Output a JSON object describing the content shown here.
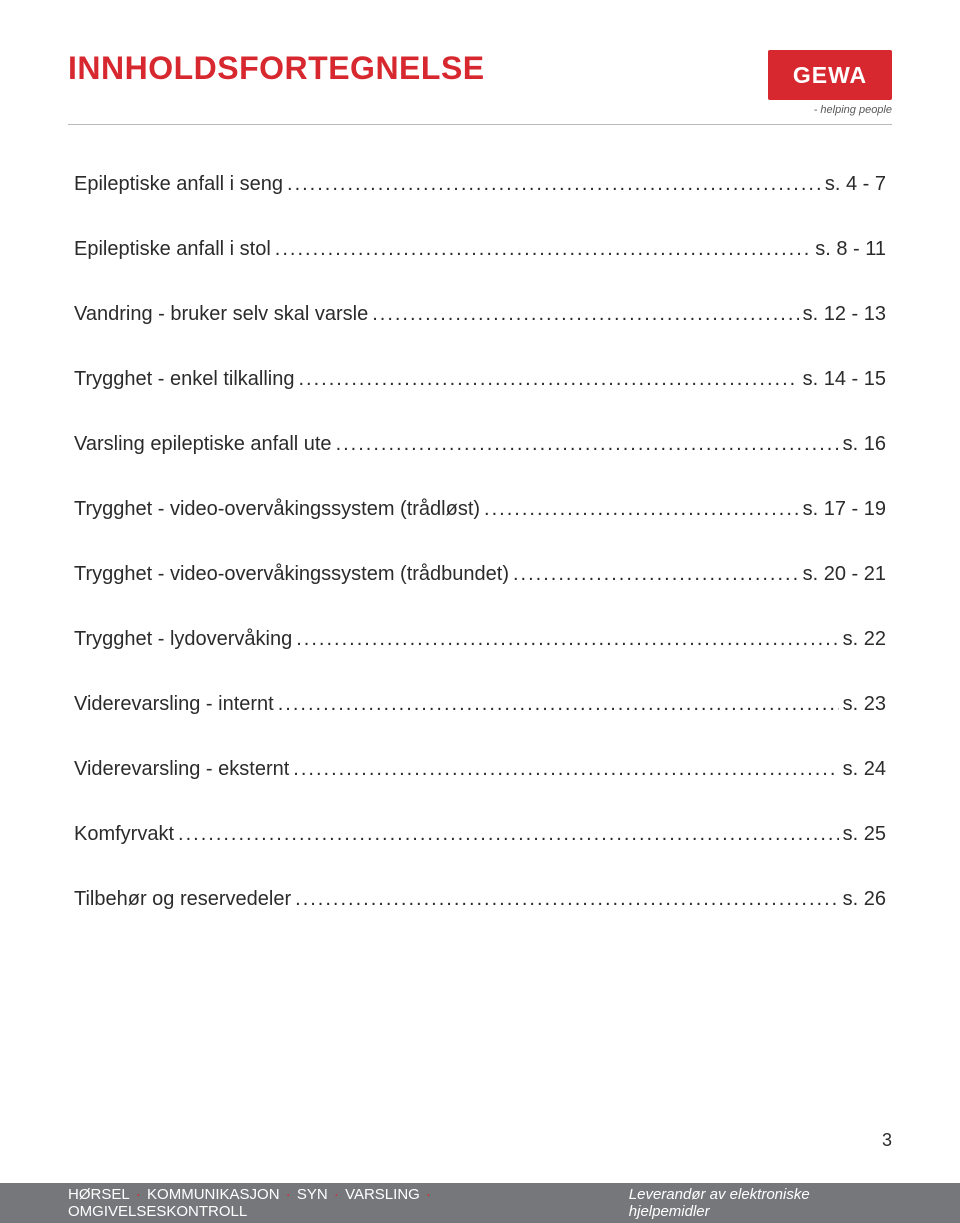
{
  "colors": {
    "accent": "#d7282f",
    "text": "#2b2b2b",
    "footer_bg": "#76777a",
    "footer_text": "#ffffff",
    "footer_accent": "#d7282f",
    "rule": "#b9b9b9",
    "logo_bg": "#d7282f",
    "logo_text": "#ffffff",
    "tagline": "#585858"
  },
  "title": "INNHOLDSFORTEGNELSE",
  "logo": {
    "text": "GEWA",
    "tagline": "- helping people"
  },
  "toc": [
    {
      "label": "Epileptiske anfall i seng",
      "page": "s. 4 - 7"
    },
    {
      "label": "Epileptiske anfall i stol",
      "page": "s. 8 - 11"
    },
    {
      "label": "Vandring - bruker selv skal varsle",
      "page": "s. 12 - 13"
    },
    {
      "label": "Trygghet - enkel tilkalling",
      "page": "s. 14 - 15"
    },
    {
      "label": "Varsling epileptiske anfall ute",
      "page": "s. 16"
    },
    {
      "label": "Trygghet - video-overvåkingssystem (trådløst)",
      "page": "s. 17 - 19"
    },
    {
      "label": "Trygghet - video-overvåkingssystem (trådbundet)",
      "page": "s. 20 - 21"
    },
    {
      "label": "Trygghet - lydovervåking",
      "page": "s. 22"
    },
    {
      "label": "Viderevarsling - internt",
      "page": "s. 23"
    },
    {
      "label": "Viderevarsling - eksternt",
      "page": "s. 24"
    },
    {
      "label": "Komfyrvakt",
      "page": "s. 25"
    },
    {
      "label": "Tilbehør og reservedeler",
      "page": "s. 26"
    }
  ],
  "page_number": "3",
  "footer": {
    "categories": [
      "HØRSEL",
      "KOMMUNIKASJON",
      "SYN",
      "VARSLING",
      "OMGIVELSESKONTROLL"
    ],
    "separator": "·",
    "right": "Leverandør av elektroniske hjelpemidler"
  }
}
